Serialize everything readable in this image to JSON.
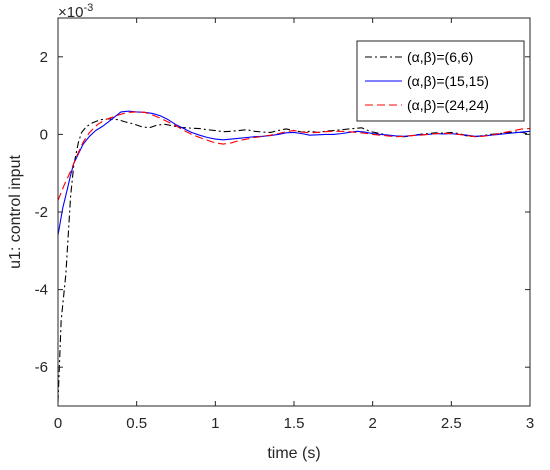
{
  "chart_data": {
    "type": "line",
    "xlabel": "time (s)",
    "ylabel": "u1: control input",
    "exponent_label": "×10",
    "exponent_power": "-3",
    "xlim": [
      0,
      3
    ],
    "ylim": [
      -7,
      3
    ],
    "x_ticks": [
      0,
      0.5,
      1,
      1.5,
      2,
      2.5,
      3
    ],
    "x_tick_labels": [
      "0",
      "0.5",
      "1",
      "1.5",
      "2",
      "2.5",
      "3"
    ],
    "y_ticks": [
      -6,
      -4,
      -2,
      0,
      2
    ],
    "y_tick_labels": [
      "-6",
      "-4",
      "-2",
      "0",
      "2"
    ],
    "grid": false,
    "legend_placement": "top-right",
    "series": [
      {
        "name": "(α,β)=(6,6)",
        "color": "#000000",
        "dash": "dashdot",
        "points": [
          [
            0,
            -6.9
          ],
          [
            0.02,
            -4.8
          ],
          [
            0.05,
            -3.6
          ],
          [
            0.08,
            -1.6
          ],
          [
            0.1,
            -0.8
          ],
          [
            0.13,
            -0.2
          ],
          [
            0.15,
            0.05
          ],
          [
            0.18,
            0.2
          ],
          [
            0.22,
            0.3
          ],
          [
            0.27,
            0.38
          ],
          [
            0.32,
            0.4
          ],
          [
            0.38,
            0.38
          ],
          [
            0.43,
            0.32
          ],
          [
            0.48,
            0.27
          ],
          [
            0.53,
            0.2
          ],
          [
            0.58,
            0.17
          ],
          [
            0.63,
            0.24
          ],
          [
            0.68,
            0.26
          ],
          [
            0.73,
            0.22
          ],
          [
            0.78,
            0.18
          ],
          [
            0.85,
            0.16
          ],
          [
            0.9,
            0.15
          ],
          [
            0.95,
            0.12
          ],
          [
            1.0,
            0.1
          ],
          [
            1.05,
            0.07
          ],
          [
            1.1,
            0.08
          ],
          [
            1.15,
            0.1
          ],
          [
            1.2,
            0.12
          ],
          [
            1.25,
            0.08
          ],
          [
            1.3,
            0.06
          ],
          [
            1.35,
            0.05
          ],
          [
            1.4,
            0.1
          ],
          [
            1.45,
            0.14
          ],
          [
            1.5,
            0.1
          ],
          [
            1.55,
            0.06
          ],
          [
            1.6,
            0.08
          ],
          [
            1.65,
            0.05
          ],
          [
            1.7,
            0.08
          ],
          [
            1.75,
            0.1
          ],
          [
            1.8,
            0.12
          ],
          [
            1.85,
            0.14
          ],
          [
            1.9,
            0.16
          ],
          [
            1.93,
            0.17
          ],
          [
            1.97,
            0.1
          ],
          [
            2.0,
            0.06
          ],
          [
            2.05,
            0.02
          ],
          [
            2.1,
            -0.02
          ],
          [
            2.15,
            -0.05
          ],
          [
            2.2,
            -0.06
          ],
          [
            2.25,
            -0.03
          ],
          [
            2.3,
            0.0
          ],
          [
            2.35,
            0.02
          ],
          [
            2.4,
            0.04
          ],
          [
            2.45,
            0.03
          ],
          [
            2.5,
            0.05
          ],
          [
            2.55,
            0.02
          ],
          [
            2.6,
            -0.04
          ],
          [
            2.65,
            -0.06
          ],
          [
            2.7,
            -0.03
          ],
          [
            2.75,
            0.0
          ],
          [
            2.8,
            0.02
          ],
          [
            2.85,
            0.04
          ],
          [
            2.9,
            0.06
          ],
          [
            2.95,
            0.05
          ],
          [
            3.0,
            0.0
          ]
        ]
      },
      {
        "name": "(α,β)=(15,15)",
        "color": "#0000ff",
        "dash": "solid",
        "points": [
          [
            0,
            -2.6
          ],
          [
            0.03,
            -1.9
          ],
          [
            0.06,
            -1.4
          ],
          [
            0.08,
            -1.05
          ],
          [
            0.1,
            -0.75
          ],
          [
            0.13,
            -0.5
          ],
          [
            0.16,
            -0.25
          ],
          [
            0.2,
            -0.05
          ],
          [
            0.24,
            0.1
          ],
          [
            0.28,
            0.2
          ],
          [
            0.32,
            0.32
          ],
          [
            0.36,
            0.45
          ],
          [
            0.4,
            0.58
          ],
          [
            0.45,
            0.6
          ],
          [
            0.5,
            0.58
          ],
          [
            0.55,
            0.57
          ],
          [
            0.6,
            0.54
          ],
          [
            0.65,
            0.48
          ],
          [
            0.7,
            0.38
          ],
          [
            0.75,
            0.25
          ],
          [
            0.8,
            0.15
          ],
          [
            0.85,
            0.05
          ],
          [
            0.9,
            -0.02
          ],
          [
            0.95,
            -0.08
          ],
          [
            1.0,
            -0.12
          ],
          [
            1.05,
            -0.14
          ],
          [
            1.1,
            -0.12
          ],
          [
            1.15,
            -0.1
          ],
          [
            1.2,
            -0.08
          ],
          [
            1.25,
            -0.06
          ],
          [
            1.3,
            -0.05
          ],
          [
            1.35,
            -0.03
          ],
          [
            1.4,
            0.0
          ],
          [
            1.45,
            0.04
          ],
          [
            1.5,
            0.05
          ],
          [
            1.55,
            0.02
          ],
          [
            1.6,
            -0.02
          ],
          [
            1.65,
            -0.01
          ],
          [
            1.7,
            0.0
          ],
          [
            1.75,
            0.0
          ],
          [
            1.8,
            0.02
          ],
          [
            1.85,
            0.05
          ],
          [
            1.9,
            0.08
          ],
          [
            1.95,
            0.06
          ],
          [
            2.0,
            0.02
          ],
          [
            2.05,
            0.0
          ],
          [
            2.1,
            -0.02
          ],
          [
            2.15,
            -0.04
          ],
          [
            2.2,
            -0.05
          ],
          [
            2.25,
            -0.03
          ],
          [
            2.3,
            -0.01
          ],
          [
            2.35,
            0.0
          ],
          [
            2.4,
            0.02
          ],
          [
            2.45,
            0.01
          ],
          [
            2.5,
            0.02
          ],
          [
            2.55,
            0.0
          ],
          [
            2.6,
            -0.02
          ],
          [
            2.65,
            -0.05
          ],
          [
            2.7,
            -0.04
          ],
          [
            2.75,
            -0.02
          ],
          [
            2.8,
            0.0
          ],
          [
            2.85,
            0.02
          ],
          [
            2.9,
            0.04
          ],
          [
            2.95,
            0.06
          ],
          [
            3.0,
            0.08
          ]
        ]
      },
      {
        "name": "(α,β)=(24,24)",
        "color": "#ff0000",
        "dash": "dashed",
        "points": [
          [
            0,
            -1.7
          ],
          [
            0.04,
            -1.3
          ],
          [
            0.08,
            -0.95
          ],
          [
            0.12,
            -0.55
          ],
          [
            0.16,
            -0.2
          ],
          [
            0.2,
            0.05
          ],
          [
            0.25,
            0.25
          ],
          [
            0.3,
            0.38
          ],
          [
            0.35,
            0.45
          ],
          [
            0.4,
            0.52
          ],
          [
            0.45,
            0.57
          ],
          [
            0.5,
            0.58
          ],
          [
            0.55,
            0.57
          ],
          [
            0.6,
            0.5
          ],
          [
            0.65,
            0.42
          ],
          [
            0.7,
            0.32
          ],
          [
            0.75,
            0.22
          ],
          [
            0.8,
            0.1
          ],
          [
            0.85,
            0.0
          ],
          [
            0.9,
            -0.08
          ],
          [
            0.95,
            -0.15
          ],
          [
            1.0,
            -0.22
          ],
          [
            1.05,
            -0.25
          ],
          [
            1.1,
            -0.22
          ],
          [
            1.15,
            -0.16
          ],
          [
            1.2,
            -0.12
          ],
          [
            1.25,
            -0.08
          ],
          [
            1.3,
            -0.05
          ],
          [
            1.35,
            -0.02
          ],
          [
            1.4,
            0.02
          ],
          [
            1.45,
            0.07
          ],
          [
            1.5,
            0.1
          ],
          [
            1.55,
            0.06
          ],
          [
            1.6,
            0.04
          ],
          [
            1.65,
            0.05
          ],
          [
            1.7,
            0.07
          ],
          [
            1.75,
            0.08
          ],
          [
            1.8,
            0.08
          ],
          [
            1.85,
            0.07
          ],
          [
            1.9,
            0.05
          ],
          [
            1.95,
            0.03
          ],
          [
            2.0,
            0.0
          ],
          [
            2.05,
            -0.02
          ],
          [
            2.1,
            -0.04
          ],
          [
            2.15,
            -0.06
          ],
          [
            2.2,
            -0.05
          ],
          [
            2.25,
            -0.03
          ],
          [
            2.3,
            -0.02
          ],
          [
            2.35,
            0.0
          ],
          [
            2.4,
            0.02
          ],
          [
            2.45,
            0.03
          ],
          [
            2.5,
            0.02
          ],
          [
            2.55,
            0.0
          ],
          [
            2.6,
            -0.03
          ],
          [
            2.65,
            -0.06
          ],
          [
            2.7,
            -0.05
          ],
          [
            2.75,
            -0.02
          ],
          [
            2.8,
            0.02
          ],
          [
            2.85,
            0.06
          ],
          [
            2.9,
            0.1
          ],
          [
            2.95,
            0.14
          ],
          [
            3.0,
            0.15
          ]
        ]
      }
    ]
  }
}
